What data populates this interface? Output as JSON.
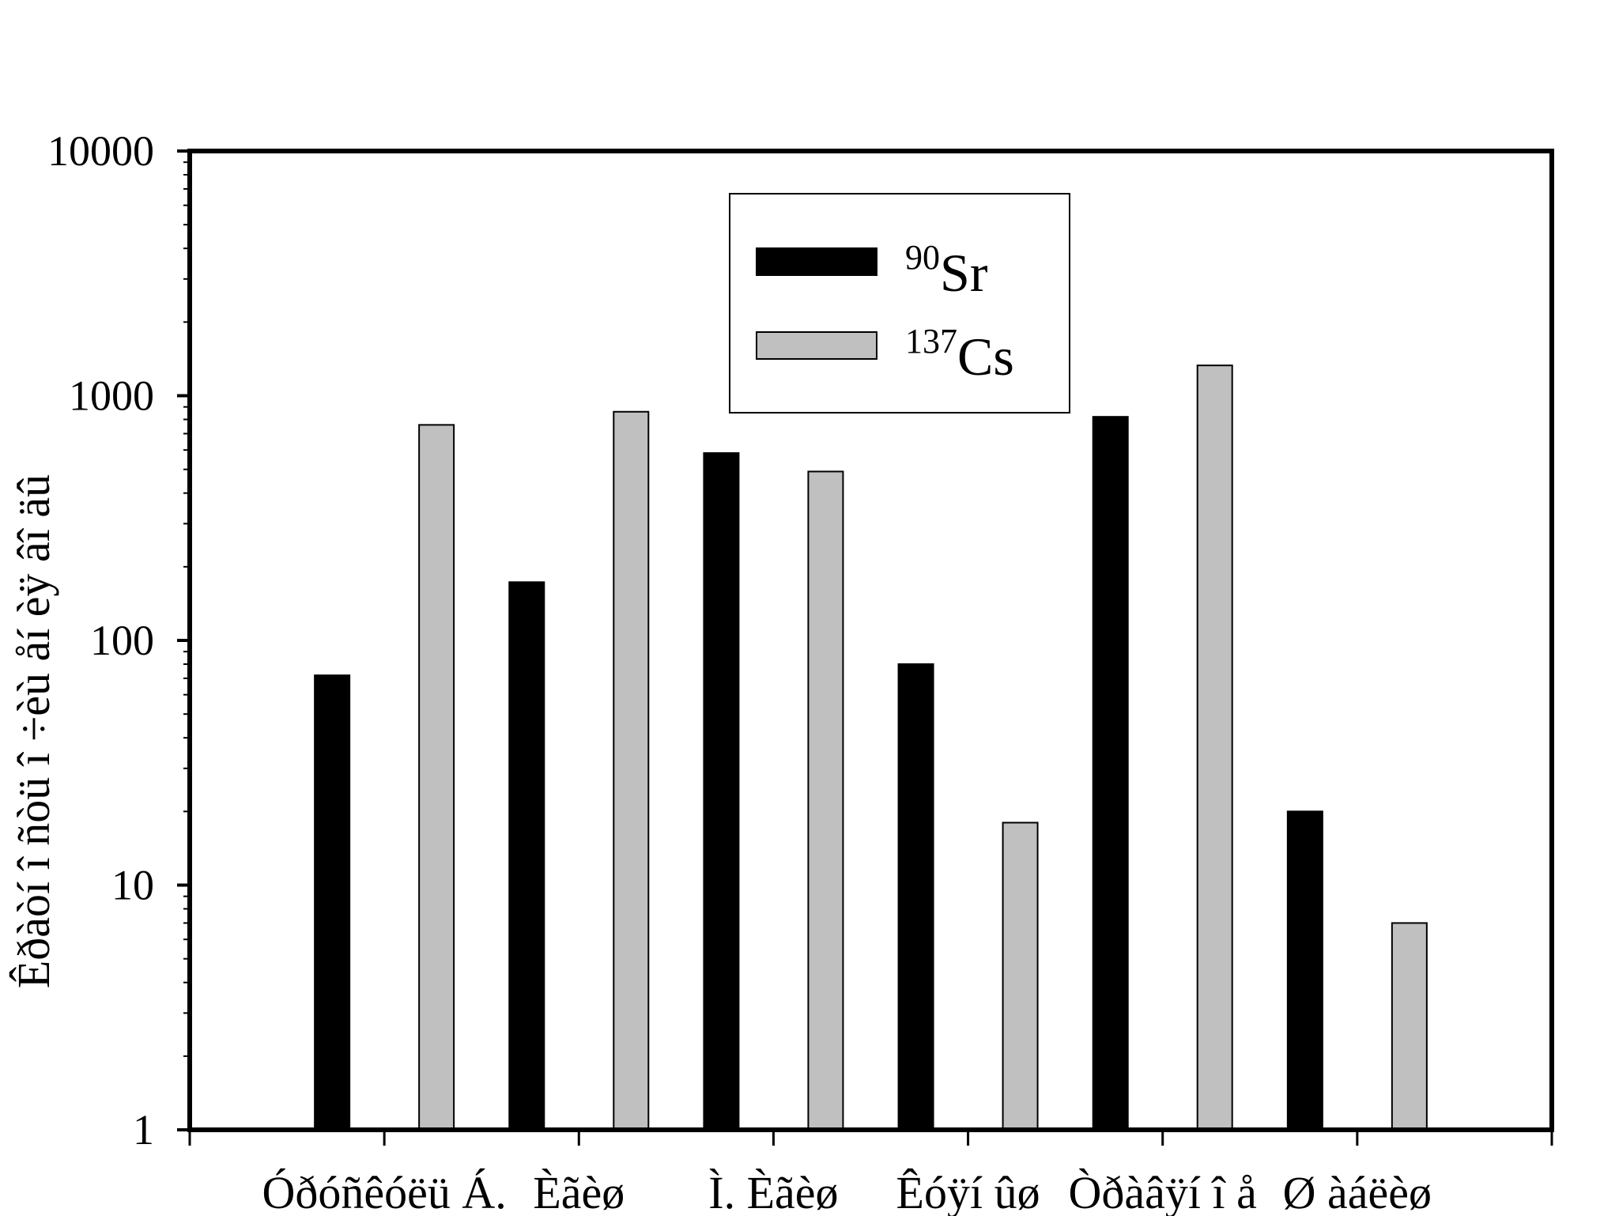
{
  "chart_data": {
    "type": "bar",
    "title": "",
    "xlabel": "",
    "ylabel": "Êðàòí î ñòü î ÷èù åí èÿ âî äû",
    "yscale": "log",
    "ylim": [
      1,
      10000
    ],
    "yticks": [
      1,
      10,
      100,
      1000,
      10000
    ],
    "ytick_labels": [
      "1",
      "10",
      "100",
      "1000",
      "10000"
    ],
    "grid": false,
    "legend_position": "top-center",
    "categories": [
      "Óðóñêóëü Á.",
      "Èãèø",
      "Ì. Èãèø",
      "Êóÿí ûø",
      "Òðàâÿí î å",
      "Ø àáëèø"
    ],
    "series": [
      {
        "name_mass": "90",
        "name_symbol": "Sr",
        "color": "#000000",
        "values": [
          72,
          173,
          583,
          80,
          820,
          20
        ]
      },
      {
        "name_mass": "137",
        "name_symbol": "Cs",
        "color": "#c0c0c0",
        "values": [
          760,
          860,
          490,
          18,
          1330,
          7
        ]
      }
    ]
  }
}
